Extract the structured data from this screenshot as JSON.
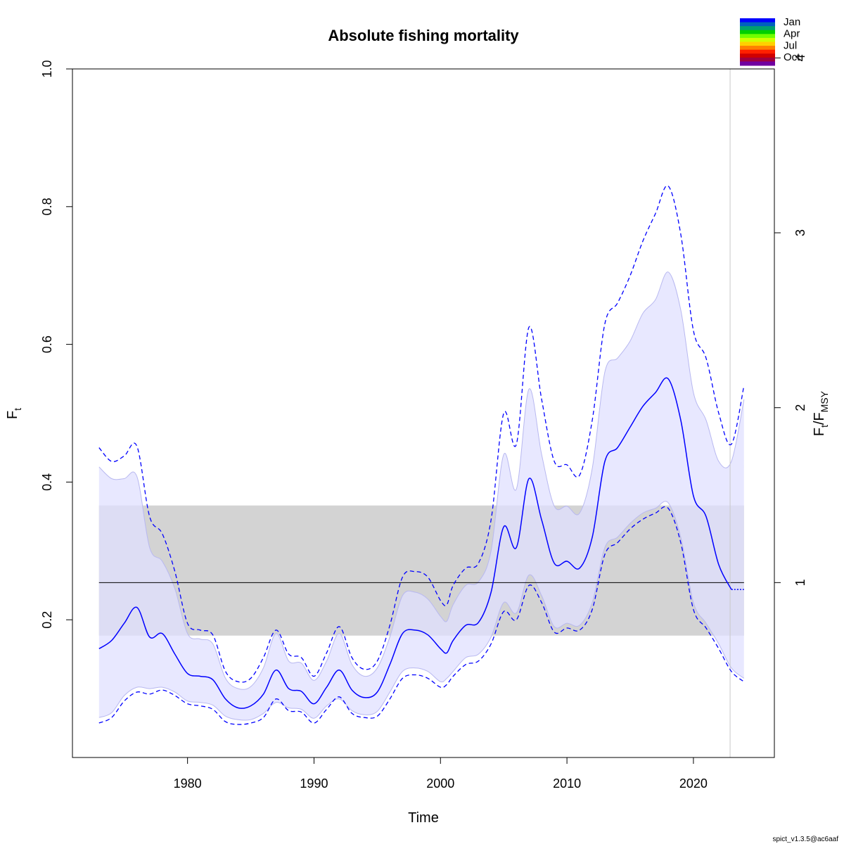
{
  "chart_data": {
    "type": "line",
    "title": "Absolute fishing mortality",
    "xlabel": "Time",
    "ylabel": {
      "main": "F",
      "sub": "t"
    },
    "y2label": {
      "main1": "F",
      "sub1": "t",
      "slash": "/",
      "main2": "F",
      "sub2": "MSY"
    },
    "xlim": [
      1970.9,
      2026.4
    ],
    "ylim": [
      0.0,
      1.0
    ],
    "y2_scale_Fmsy": 0.254,
    "xticks": [
      "1980",
      "1990",
      "2000",
      "2010",
      "2020"
    ],
    "yticks": [
      "0.2",
      "0.4",
      "0.6",
      "0.8",
      "1.0"
    ],
    "y2ticks": [
      "1",
      "2",
      "3",
      "4"
    ],
    "grid": false,
    "colors": {
      "line": "#0000ff",
      "ci_fill": "#e0e0ff",
      "ci_edge": "#b8b8f0",
      "ref_band": "#d3d3d3",
      "ref_line": "#000000",
      "vline": "#c8c8c8"
    },
    "reference": {
      "Fmsy": 0.254,
      "band": [
        0.177,
        0.366
      ]
    },
    "forecast_start": 2022.9,
    "legend": {
      "position": "top-right",
      "labels": [
        "Jan",
        "Apr",
        "Jul",
        "Oct"
      ],
      "colors": [
        "#0000ff",
        "#0060c0",
        "#00a070",
        "#00d000",
        "#70ff00",
        "#d0ff00",
        "#ffd000",
        "#ff8000",
        "#ff2000",
        "#d00000",
        "#a00040",
        "#7000a0"
      ]
    },
    "x": [
      1973,
      1974,
      1975,
      1976,
      1977,
      1978,
      1979,
      1980,
      1981,
      1982,
      1983,
      1984,
      1985,
      1986,
      1987,
      1988,
      1989,
      1990,
      1991,
      1992,
      1993,
      1994,
      1995,
      1996,
      1997,
      1998,
      1999,
      2000,
      2000.5,
      2001,
      2002,
      2003,
      2004,
      2005,
      2006,
      2007,
      2008,
      2009,
      2010,
      2011,
      2012,
      2013,
      2014,
      2015,
      2016,
      2017,
      2018,
      2019,
      2020,
      2021,
      2022,
      2023,
      2024
    ],
    "series": [
      {
        "name": "F",
        "values": [
          0.158,
          0.17,
          0.195,
          0.218,
          0.175,
          0.18,
          0.15,
          0.122,
          0.118,
          0.113,
          0.085,
          0.072,
          0.075,
          0.092,
          0.127,
          0.1,
          0.096,
          0.078,
          0.102,
          0.127,
          0.098,
          0.087,
          0.095,
          0.135,
          0.18,
          0.185,
          0.178,
          0.158,
          0.152,
          0.17,
          0.192,
          0.196,
          0.24,
          0.335,
          0.305,
          0.405,
          0.345,
          0.282,
          0.285,
          0.275,
          0.32,
          0.43,
          0.45,
          0.48,
          0.51,
          0.53,
          0.55,
          0.49,
          0.38,
          0.35,
          0.28,
          0.244,
          0.244
        ]
      },
      {
        "name": "lower",
        "values": [
          0.058,
          0.065,
          0.09,
          0.102,
          0.1,
          0.102,
          0.095,
          0.082,
          0.08,
          0.076,
          0.06,
          0.055,
          0.055,
          0.064,
          0.08,
          0.072,
          0.07,
          0.057,
          0.075,
          0.085,
          0.068,
          0.062,
          0.067,
          0.095,
          0.125,
          0.13,
          0.125,
          0.11,
          0.115,
          0.125,
          0.145,
          0.15,
          0.175,
          0.225,
          0.21,
          0.265,
          0.235,
          0.19,
          0.195,
          0.192,
          0.225,
          0.305,
          0.32,
          0.34,
          0.355,
          0.362,
          0.37,
          0.32,
          0.225,
          0.195,
          0.165,
          0.13,
          0.115
        ]
      },
      {
        "name": "upper",
        "values": [
          0.422,
          0.405,
          0.405,
          0.408,
          0.305,
          0.285,
          0.245,
          0.18,
          0.172,
          0.165,
          0.115,
          0.1,
          0.103,
          0.13,
          0.18,
          0.14,
          0.137,
          0.112,
          0.14,
          0.18,
          0.135,
          0.118,
          0.13,
          0.175,
          0.235,
          0.24,
          0.23,
          0.205,
          0.198,
          0.222,
          0.25,
          0.255,
          0.3,
          0.44,
          0.39,
          0.535,
          0.44,
          0.365,
          0.365,
          0.355,
          0.42,
          0.56,
          0.58,
          0.605,
          0.645,
          0.665,
          0.705,
          0.65,
          0.53,
          0.49,
          0.43,
          0.43,
          0.52
        ]
      }
    ],
    "ci_outer": {
      "lower": [
        0.05,
        0.058,
        0.082,
        0.095,
        0.092,
        0.098,
        0.09,
        0.078,
        0.075,
        0.07,
        0.052,
        0.048,
        0.05,
        0.058,
        0.085,
        0.068,
        0.066,
        0.05,
        0.07,
        0.088,
        0.064,
        0.058,
        0.06,
        0.085,
        0.115,
        0.12,
        0.115,
        0.102,
        0.106,
        0.118,
        0.135,
        0.14,
        0.165,
        0.212,
        0.2,
        0.25,
        0.225,
        0.182,
        0.188,
        0.185,
        0.215,
        0.295,
        0.312,
        0.332,
        0.346,
        0.355,
        0.362,
        0.312,
        0.215,
        0.188,
        0.158,
        0.125,
        0.11
      ],
      "upper": [
        0.45,
        0.43,
        0.438,
        0.452,
        0.35,
        0.325,
        0.27,
        0.195,
        0.185,
        0.178,
        0.125,
        0.11,
        0.115,
        0.145,
        0.185,
        0.15,
        0.145,
        0.118,
        0.152,
        0.19,
        0.145,
        0.128,
        0.14,
        0.192,
        0.262,
        0.27,
        0.262,
        0.228,
        0.222,
        0.25,
        0.275,
        0.282,
        0.345,
        0.5,
        0.455,
        0.625,
        0.52,
        0.43,
        0.425,
        0.41,
        0.49,
        0.63,
        0.66,
        0.7,
        0.75,
        0.79,
        0.83,
        0.76,
        0.62,
        0.58,
        0.5,
        0.455,
        0.54
      ]
    },
    "watermark": "spict_v1.3.5@ac6aaf"
  }
}
